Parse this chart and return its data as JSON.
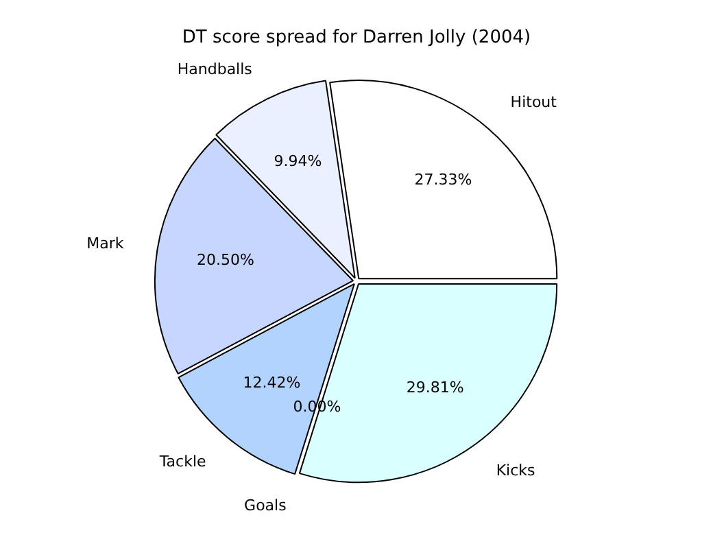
{
  "chart_data": {
    "type": "pie",
    "title": "DT score spread for Darren Jolly (2004)",
    "categories": [
      "Hitout",
      "Handballs",
      "Mark",
      "Tackle",
      "Goals",
      "Kicks"
    ],
    "values": [
      27.33,
      9.94,
      20.5,
      12.42,
      0.0,
      29.81
    ],
    "value_labels": [
      "27.33%",
      "9.94%",
      "20.50%",
      "12.42%",
      "0.00%",
      "29.81%"
    ],
    "colors": [
      "#ffffff",
      "#eaf0ff",
      "#c6d6ff",
      "#b3d3ff",
      "#c0e0ff",
      "#d9ffff"
    ],
    "legend": false
  }
}
